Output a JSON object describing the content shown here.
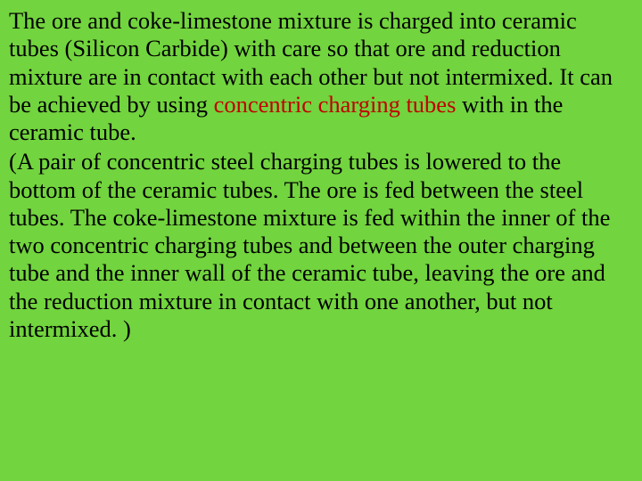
{
  "slide": {
    "background_color": "#72d43e",
    "text_color": "#000000",
    "highlight_color": "#c00000",
    "font_family": "Times New Roman",
    "font_size_pt": 20,
    "line_height": 1.18,
    "para1_a": "The ore and coke-limestone mixture is charged into ceramic tubes (Silicon Carbide) with care so that ore and reduction mixture are in contact with each other but not intermixed. It can be achieved by using ",
    "para1_hl": "concentric charging tubes",
    "para1_b": " with in the ceramic tube.",
    "para2": "(A pair of concentric steel charging tubes is lowered to the bottom of the ceramic tubes. The ore is fed between the steel tubes. The coke-limestone mixture is fed within the inner of the two concentric charging tubes and between the outer charging tube and the inner wall of the ceramic tube, leaving the ore and the reduction mixture in contact with one another, but not intermixed. )"
  }
}
